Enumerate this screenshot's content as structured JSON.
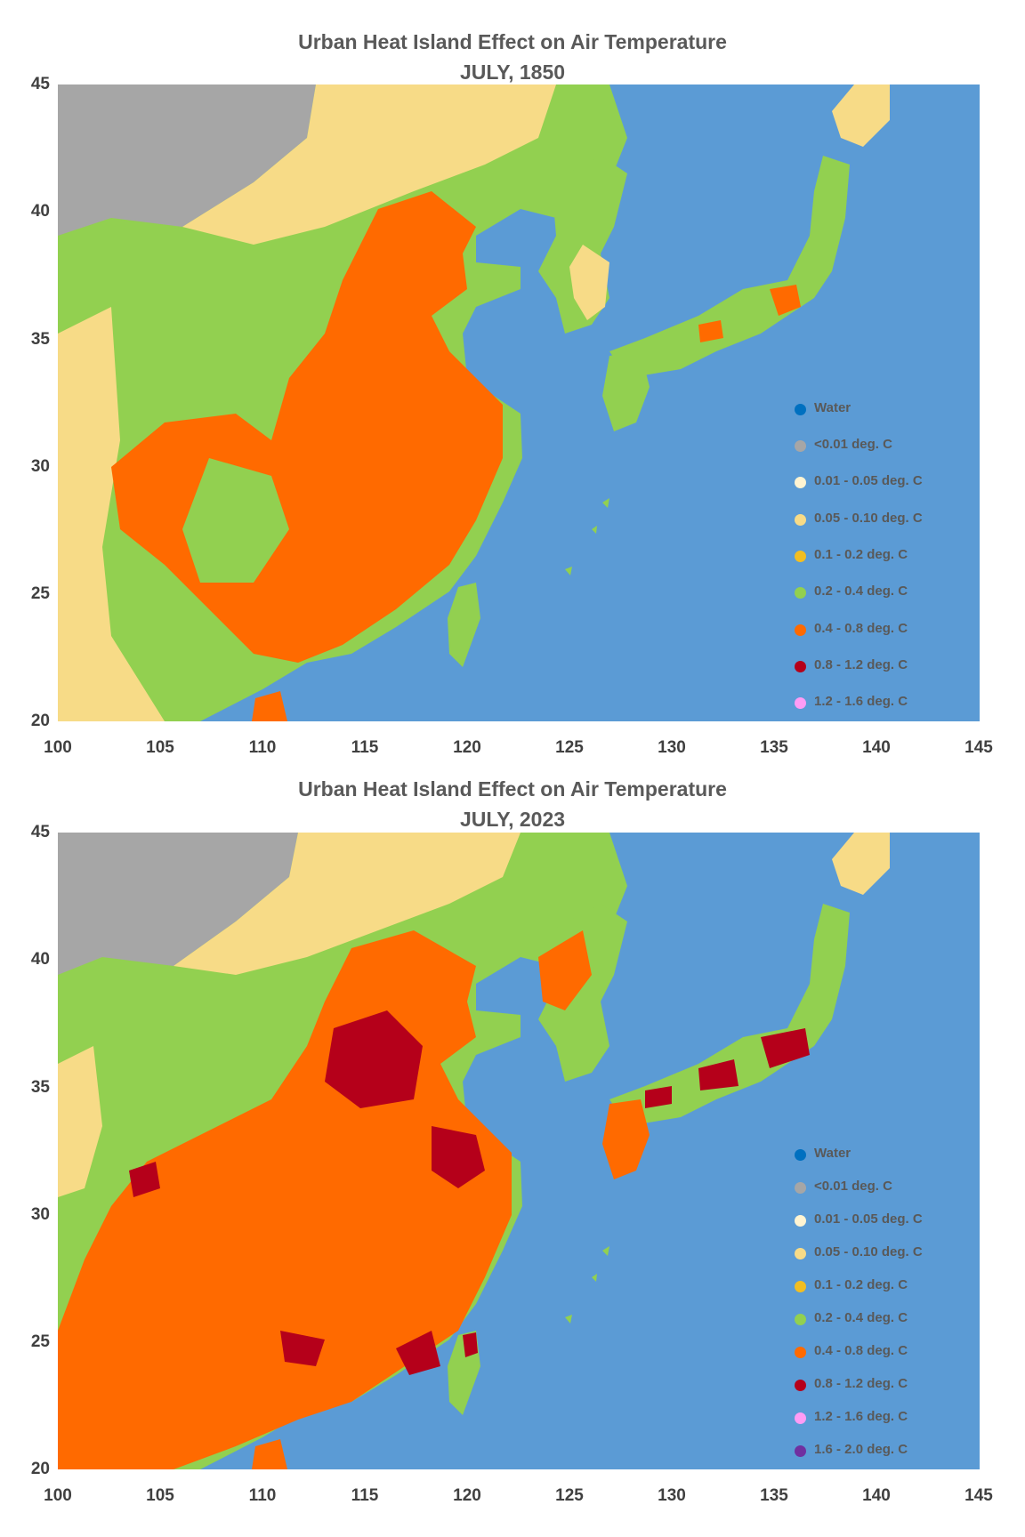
{
  "colors": {
    "water": "#5b9bd5",
    "legend_water": "#0070c0",
    "lt001": "#a6a6a6",
    "c001_005": "#fff4d2",
    "c005_010": "#f7db87",
    "c01_02": "#f2be22",
    "c02_04": "#92d050",
    "c04_08": "#ff6a00",
    "c08_12": "#b5001a",
    "c12_16": "#ff9cf5",
    "c16_20": "#7030a0"
  },
  "panels": [
    {
      "title_line1": "Urban Heat Island Effect on Air Temperature",
      "title_line2": "JULY, 1850",
      "x_ticks": [
        "100",
        "105",
        "110",
        "115",
        "120",
        "125",
        "130",
        "135",
        "140",
        "145"
      ],
      "y_ticks": [
        "45",
        "40",
        "35",
        "30",
        "25",
        "20"
      ],
      "legend": [
        {
          "label": "Water",
          "color_key": "legend_water"
        },
        {
          "label": "<0.01 deg. C",
          "color_key": "lt001"
        },
        {
          "label": "0.01 - 0.05 deg. C",
          "color_key": "c001_005"
        },
        {
          "label": "0.05 - 0.10 deg. C",
          "color_key": "c005_010"
        },
        {
          "label": "0.1 - 0.2 deg. C",
          "color_key": "c01_02"
        },
        {
          "label": "0.2 - 0.4 deg. C",
          "color_key": "c02_04"
        },
        {
          "label": "0.4 - 0.8 deg. C",
          "color_key": "c04_08"
        },
        {
          "label": "0.8 - 1.2 deg. C",
          "color_key": "c08_12"
        },
        {
          "label": "1.2 - 1.6 deg. C",
          "color_key": "c12_16"
        }
      ]
    },
    {
      "title_line1": "Urban Heat Island Effect on Air Temperature",
      "title_line2": "JULY, 2023",
      "x_ticks": [
        "100",
        "105",
        "110",
        "115",
        "120",
        "125",
        "130",
        "135",
        "140",
        "145"
      ],
      "y_ticks": [
        "45",
        "40",
        "35",
        "30",
        "25",
        "20"
      ],
      "legend": [
        {
          "label": "Water",
          "color_key": "legend_water"
        },
        {
          "label": "<0.01 deg. C",
          "color_key": "lt001"
        },
        {
          "label": "0.01 - 0.05 deg. C",
          "color_key": "c001_005"
        },
        {
          "label": "0.05 - 0.10 deg. C",
          "color_key": "c005_010"
        },
        {
          "label": "0.1 - 0.2 deg. C",
          "color_key": "c01_02"
        },
        {
          "label": "0.2 - 0.4 deg. C",
          "color_key": "c02_04"
        },
        {
          "label": "0.4 - 0.8 deg. C",
          "color_key": "c04_08"
        },
        {
          "label": "0.8 - 1.2 deg. C",
          "color_key": "c08_12"
        },
        {
          "label": "1.2 - 1.6 deg. C",
          "color_key": "c12_16"
        },
        {
          "label": "1.6 - 2.0 deg. C",
          "color_key": "c16_20"
        }
      ]
    }
  ]
}
